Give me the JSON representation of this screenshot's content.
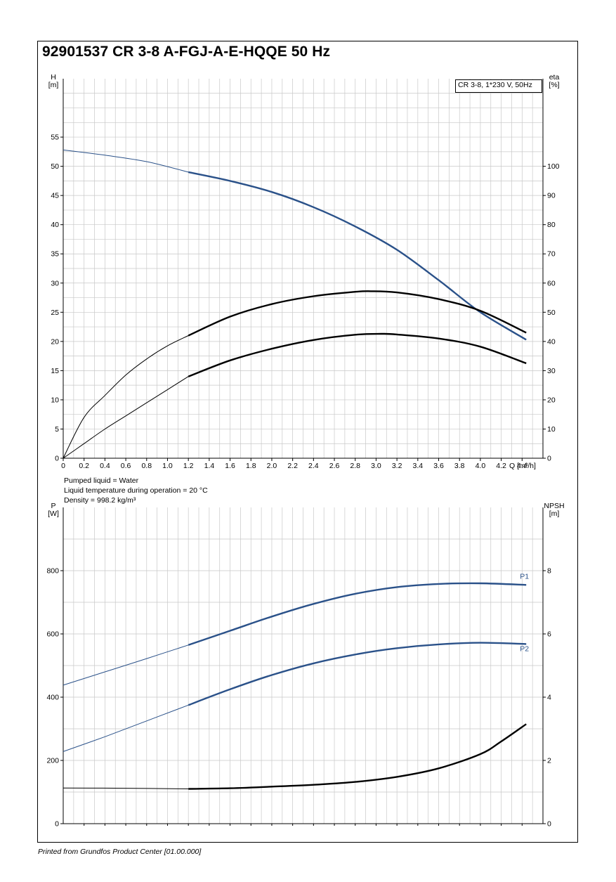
{
  "title": "92901537 CR 3-8 A-FGJ-A-E-HQQE 50 Hz",
  "legend_box": "CR 3-8, 1*230 V, 50Hz",
  "liquid_info": [
    "Pumped liquid = Water",
    "Liquid temperature during operation = 20 °C",
    "Density = 998.2 kg/m³"
  ],
  "footer": "Printed from Grundfos Product Center [01.00.000]",
  "colors": {
    "blue": "#2a5189",
    "black": "#000000",
    "grid": "#c8c8c8"
  },
  "chart_data": [
    {
      "type": "line",
      "x_axis": {
        "label": "Q [m³/h]",
        "range": [
          0,
          4.6
        ],
        "ticks": [
          0,
          0.2,
          0.4,
          0.6,
          0.8,
          1.0,
          1.2,
          1.4,
          1.6,
          1.8,
          2.0,
          2.2,
          2.4,
          2.6,
          2.8,
          3.0,
          3.2,
          3.4,
          3.6,
          3.8,
          4.0,
          4.2,
          4.4
        ],
        "tick_labels": [
          "0",
          "0.2",
          "0.4",
          "0.6",
          "0.8",
          "1.0",
          "1.2",
          "1.4",
          "1.6",
          "1.8",
          "2.0",
          "2.2",
          "2.4",
          "2.6",
          "2.8",
          "3.0",
          "3.2",
          "3.4",
          "3.6",
          "3.8",
          "4.0",
          "4.2",
          "4.4"
        ]
      },
      "y_axis_left": {
        "label_top": "H",
        "label_unit": "[m]",
        "range": [
          0,
          65
        ],
        "ticks": [
          0,
          5,
          10,
          15,
          20,
          25,
          30,
          35,
          40,
          45,
          50,
          55
        ]
      },
      "y_axis_right": {
        "label_top": "eta",
        "label_unit": "[%]",
        "range": [
          0,
          130
        ],
        "ticks": [
          0,
          10,
          20,
          30,
          40,
          50,
          60,
          70,
          80,
          90,
          100
        ]
      },
      "series": [
        {
          "axis": "left",
          "color": "blue",
          "thin_points": [
            [
              0,
              52.8
            ],
            [
              0.4,
              51.9
            ],
            [
              0.8,
              50.8
            ],
            [
              1.2,
              49.0
            ]
          ],
          "thick_points": [
            [
              1.2,
              49.0
            ],
            [
              1.6,
              47.5
            ],
            [
              2.0,
              45.6
            ],
            [
              2.4,
              43.0
            ],
            [
              2.8,
              39.7
            ],
            [
              3.2,
              35.7
            ],
            [
              3.6,
              30.5
            ],
            [
              4.0,
              25.0
            ],
            [
              4.44,
              20.3
            ]
          ]
        },
        {
          "axis": "right",
          "color": "black",
          "thin_points": [
            [
              0,
              0
            ],
            [
              0.2,
              14
            ],
            [
              0.4,
              21.5
            ],
            [
              0.6,
              28.5
            ],
            [
              0.8,
              34
            ],
            [
              1.0,
              38.5
            ],
            [
              1.2,
              42
            ]
          ],
          "thick_points": [
            [
              1.2,
              42
            ],
            [
              1.6,
              48.5
            ],
            [
              2.0,
              52.8
            ],
            [
              2.4,
              55.5
            ],
            [
              2.8,
              57.0
            ],
            [
              2.95,
              57.2
            ],
            [
              3.2,
              56.8
            ],
            [
              3.6,
              54.5
            ],
            [
              4.0,
              50.5
            ],
            [
              4.44,
              43.0
            ]
          ]
        },
        {
          "axis": "right",
          "color": "black",
          "thin_points": [
            [
              0,
              0
            ],
            [
              0.2,
              5
            ],
            [
              0.4,
              10
            ],
            [
              0.6,
              14.5
            ],
            [
              0.8,
              19
            ],
            [
              1.0,
              23.5
            ],
            [
              1.2,
              28
            ]
          ],
          "thick_points": [
            [
              1.2,
              28
            ],
            [
              1.6,
              33.5
            ],
            [
              2.0,
              37.5
            ],
            [
              2.4,
              40.5
            ],
            [
              2.8,
              42.3
            ],
            [
              3.05,
              42.6
            ],
            [
              3.2,
              42.4
            ],
            [
              3.6,
              41.0
            ],
            [
              4.0,
              38.2
            ],
            [
              4.44,
              32.5
            ]
          ]
        }
      ]
    },
    {
      "type": "line",
      "x_axis": {
        "range": [
          0,
          4.6
        ]
      },
      "y_axis_left": {
        "label_top": "P",
        "label_unit": "[W]",
        "range": [
          0,
          1000
        ],
        "ticks": [
          0,
          200,
          400,
          600,
          800
        ]
      },
      "y_axis_right": {
        "label_top": "NPSH",
        "label_unit": "[m]",
        "range": [
          0,
          10
        ],
        "ticks": [
          0,
          2,
          4,
          6,
          8
        ]
      },
      "series": [
        {
          "name": "P1",
          "axis": "left",
          "color": "blue",
          "thin_points": [
            [
              0,
              438
            ],
            [
              0.4,
              480
            ],
            [
              0.8,
              522
            ],
            [
              1.2,
              565
            ]
          ],
          "thick_points": [
            [
              1.2,
              565
            ],
            [
              1.6,
              610
            ],
            [
              2.0,
              655
            ],
            [
              2.4,
              695
            ],
            [
              2.8,
              727
            ],
            [
              3.2,
              748
            ],
            [
              3.6,
              758
            ],
            [
              4.0,
              760
            ],
            [
              4.44,
              755
            ]
          ]
        },
        {
          "name": "P2",
          "axis": "left",
          "color": "blue",
          "thin_points": [
            [
              0,
              228
            ],
            [
              0.4,
              275
            ],
            [
              0.8,
              325
            ],
            [
              1.2,
              375
            ]
          ],
          "thick_points": [
            [
              1.2,
              375
            ],
            [
              1.6,
              425
            ],
            [
              2.0,
              470
            ],
            [
              2.4,
              507
            ],
            [
              2.8,
              535
            ],
            [
              3.2,
              555
            ],
            [
              3.6,
              567
            ],
            [
              4.0,
              572
            ],
            [
              4.44,
              568
            ]
          ]
        },
        {
          "axis": "right",
          "color": "black",
          "thin_points": [
            [
              0,
              1.13
            ],
            [
              0.6,
              1.12
            ],
            [
              1.2,
              1.1
            ]
          ],
          "thick_points": [
            [
              1.2,
              1.1
            ],
            [
              1.6,
              1.12
            ],
            [
              2.0,
              1.17
            ],
            [
              2.4,
              1.23
            ],
            [
              2.8,
              1.32
            ],
            [
              3.2,
              1.48
            ],
            [
              3.6,
              1.75
            ],
            [
              4.0,
              2.2
            ],
            [
              4.2,
              2.6
            ],
            [
              4.44,
              3.15
            ]
          ]
        }
      ]
    }
  ]
}
